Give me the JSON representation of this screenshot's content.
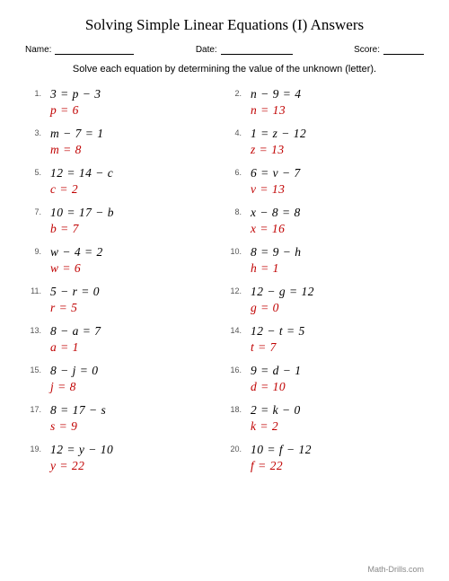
{
  "title": "Solving Simple Linear Equations (I) Answers",
  "header": {
    "name_label": "Name:",
    "date_label": "Date:",
    "score_label": "Score:"
  },
  "instructions": "Solve each equation by determining the value of the unknown (letter).",
  "colors": {
    "answer_color": "#c00000",
    "text_color": "#000000",
    "background": "#ffffff",
    "footer_color": "#888888"
  },
  "typography": {
    "title_fontsize": 17,
    "equation_fontsize": 13.5,
    "number_fontsize": 9,
    "header_fontsize": 10,
    "instruction_fontsize": 11
  },
  "problems": [
    {
      "n": "1.",
      "eq": "3 = p − 3",
      "ans": "p = 6"
    },
    {
      "n": "2.",
      "eq": "n − 9 = 4",
      "ans": "n = 13"
    },
    {
      "n": "3.",
      "eq": "m − 7 = 1",
      "ans": "m = 8"
    },
    {
      "n": "4.",
      "eq": "1 = z − 12",
      "ans": "z = 13"
    },
    {
      "n": "5.",
      "eq": "12 = 14 − c",
      "ans": "c = 2"
    },
    {
      "n": "6.",
      "eq": "6 = v − 7",
      "ans": "v = 13"
    },
    {
      "n": "7.",
      "eq": "10 = 17 − b",
      "ans": "b = 7"
    },
    {
      "n": "8.",
      "eq": "x − 8 = 8",
      "ans": "x = 16"
    },
    {
      "n": "9.",
      "eq": "w − 4 = 2",
      "ans": "w = 6"
    },
    {
      "n": "10.",
      "eq": "8 = 9 − h",
      "ans": "h = 1"
    },
    {
      "n": "11.",
      "eq": "5 − r = 0",
      "ans": "r = 5"
    },
    {
      "n": "12.",
      "eq": "12 − g = 12",
      "ans": "g = 0"
    },
    {
      "n": "13.",
      "eq": "8 − a = 7",
      "ans": "a = 1"
    },
    {
      "n": "14.",
      "eq": "12 − t = 5",
      "ans": "t = 7"
    },
    {
      "n": "15.",
      "eq": "8 − j = 0",
      "ans": "j = 8"
    },
    {
      "n": "16.",
      "eq": "9 = d − 1",
      "ans": "d = 10"
    },
    {
      "n": "17.",
      "eq": "8 = 17 − s",
      "ans": "s = 9"
    },
    {
      "n": "18.",
      "eq": "2 = k − 0",
      "ans": "k = 2"
    },
    {
      "n": "19.",
      "eq": "12 = y − 10",
      "ans": "y = 22"
    },
    {
      "n": "20.",
      "eq": "10 = f − 12",
      "ans": "f = 22"
    }
  ],
  "footer": "Math-Drills.com"
}
